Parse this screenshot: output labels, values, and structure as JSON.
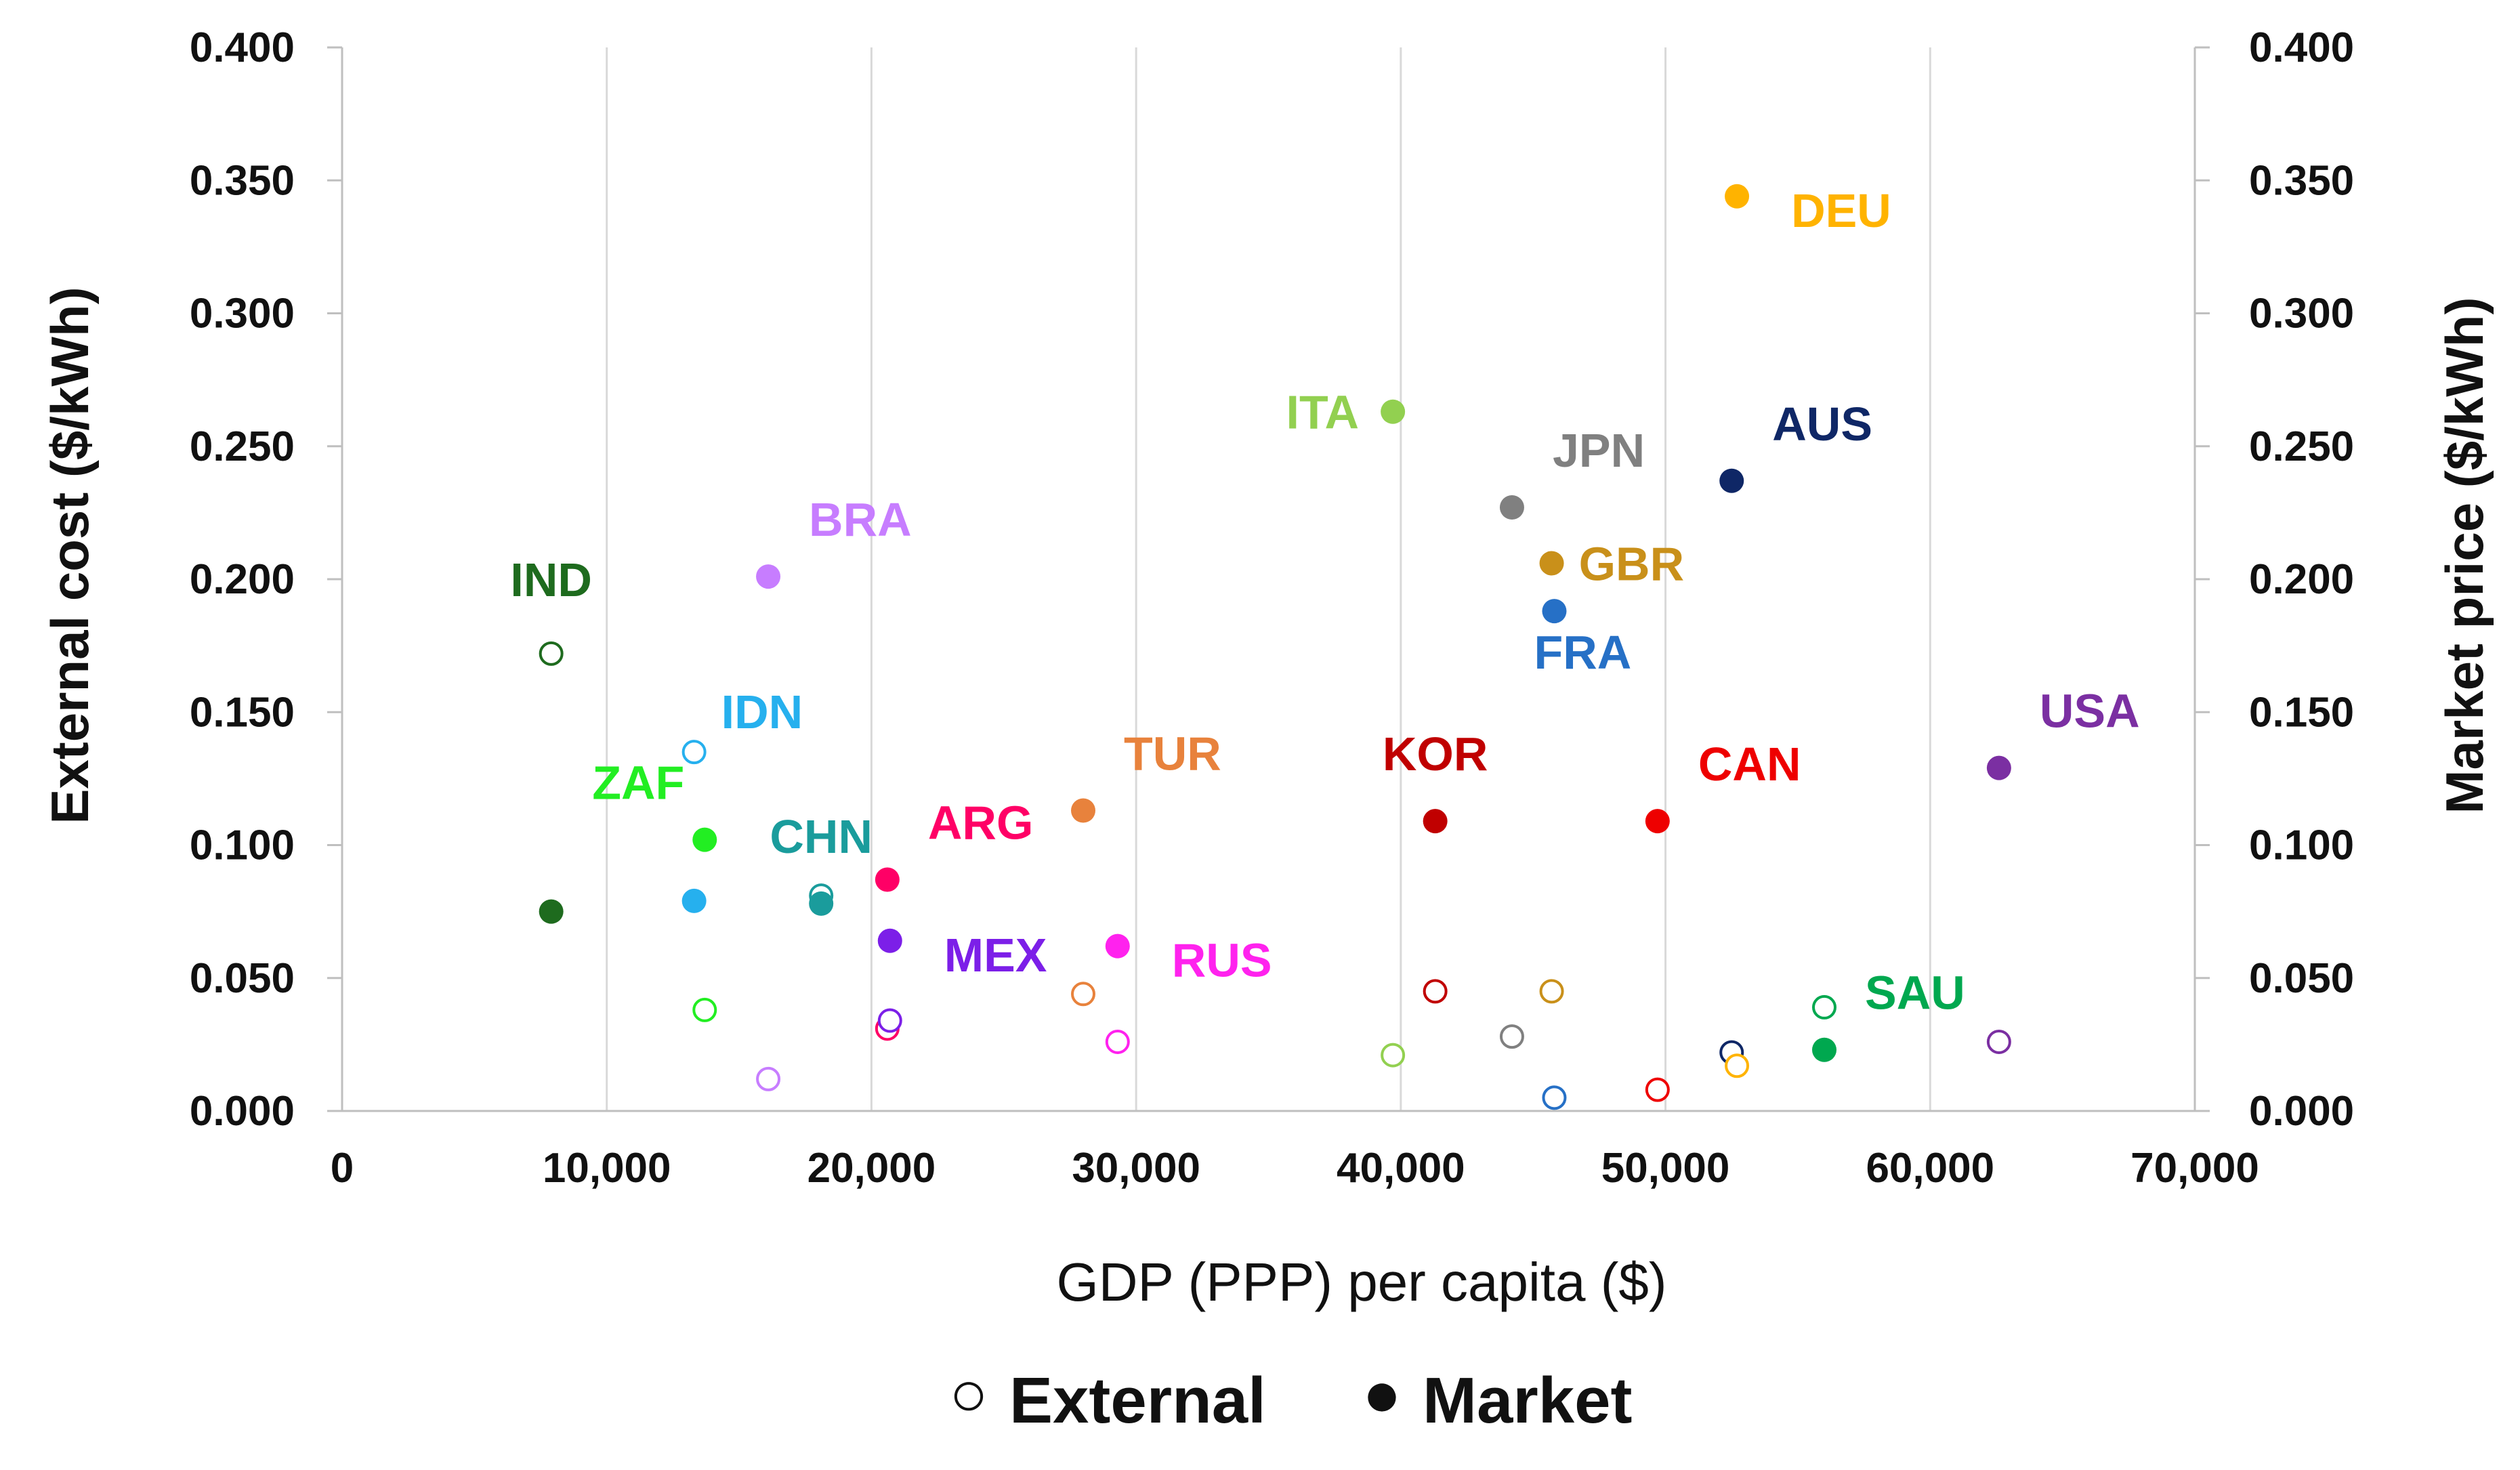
{
  "chart_data": {
    "type": "scatter",
    "title": "",
    "xlabel": "GDP (PPP) per capita ($)",
    "ylabel_left": "External cost ($/kWh)",
    "ylabel_right": "Market price ($/kWh)",
    "xlim": [
      0,
      70000
    ],
    "ylim": [
      0,
      0.4
    ],
    "grid": "vertical",
    "x_ticks": [
      "0",
      "10,000",
      "20,000",
      "30,000",
      "40,000",
      "50,000",
      "60,000",
      "70,000"
    ],
    "y_ticks": [
      "0.000",
      "0.050",
      "0.100",
      "0.150",
      "0.200",
      "0.250",
      "0.300",
      "0.350",
      "0.400"
    ],
    "legend": {
      "position": "bottom",
      "external_symbol": "○",
      "market_symbol": "●",
      "external_label": "External",
      "market_label": "Market"
    },
    "series": [
      {
        "name": "External",
        "marker": "open-circle"
      },
      {
        "name": "Market",
        "marker": "filled-circle"
      }
    ],
    "countries": [
      {
        "code": "IND",
        "color": "#1e6b1e",
        "gdp": 7900,
        "external": 0.172,
        "market": 0.075,
        "label_anchor": "market-above"
      },
      {
        "code": "BRA",
        "color": "#c77dff",
        "gdp": 16100,
        "external": 0.012,
        "market": 0.201,
        "label_anchor": "upper-right"
      },
      {
        "code": "IDN",
        "color": "#26b0ee",
        "gdp": 13300,
        "external": 0.135,
        "market": 0.079,
        "label_anchor": "external-right"
      },
      {
        "code": "ZAF",
        "color": "#22ee22",
        "gdp": 13700,
        "external": 0.038,
        "market": 0.102,
        "label_anchor": "upper-left"
      },
      {
        "code": "CHN",
        "color": "#1a9c9c",
        "gdp": 18100,
        "external": 0.081,
        "market": 0.078,
        "label_anchor": "above"
      },
      {
        "code": "ARG",
        "color": "#ff0066",
        "gdp": 20600,
        "external": 0.031,
        "market": 0.087,
        "label_anchor": "upper-right"
      },
      {
        "code": "MEX",
        "color": "#7c1fe8",
        "gdp": 20700,
        "external": 0.034,
        "market": 0.064,
        "label_anchor": "lower-right"
      },
      {
        "code": "TUR",
        "color": "#e8823c",
        "gdp": 28000,
        "external": 0.044,
        "market": 0.113,
        "label_anchor": "upper-right"
      },
      {
        "code": "RUS",
        "color": "#ff22ee",
        "gdp": 29300,
        "external": 0.026,
        "market": 0.062,
        "label_anchor": "lower-right"
      },
      {
        "code": "ITA",
        "color": "#92d050",
        "gdp": 39700,
        "external": 0.021,
        "market": 0.263,
        "label_anchor": "left"
      },
      {
        "code": "KOR",
        "color": "#c00000",
        "gdp": 41300,
        "external": 0.045,
        "market": 0.109,
        "label_anchor": "above"
      },
      {
        "code": "JPN",
        "color": "#808080",
        "gdp": 44200,
        "external": 0.028,
        "market": 0.227,
        "label_anchor": "upper-right"
      },
      {
        "code": "GBR",
        "color": "#c9901a",
        "gdp": 45700,
        "external": 0.045,
        "market": 0.206,
        "label_anchor": "right"
      },
      {
        "code": "FRA",
        "color": "#2670c6",
        "gdp": 45800,
        "external": 0.005,
        "market": 0.188,
        "label_anchor": "below-right"
      },
      {
        "code": "CAN",
        "color": "#ee0000",
        "gdp": 49700,
        "external": 0.008,
        "market": 0.109,
        "label_anchor": "upper-right"
      },
      {
        "code": "AUS",
        "color": "#0f2766",
        "gdp": 52500,
        "external": 0.022,
        "market": 0.237,
        "label_anchor": "upper-right"
      },
      {
        "code": "DEU",
        "color": "#ffb300",
        "gdp": 52700,
        "external": 0.017,
        "market": 0.344,
        "label_anchor": "lower-right"
      },
      {
        "code": "SAU",
        "color": "#00a84f",
        "gdp": 56000,
        "external": 0.039,
        "market": 0.023,
        "label_anchor": "upper-right"
      },
      {
        "code": "USA",
        "color": "#7b2fa2",
        "gdp": 62600,
        "external": 0.026,
        "market": 0.129,
        "label_anchor": "upper-right"
      }
    ]
  }
}
